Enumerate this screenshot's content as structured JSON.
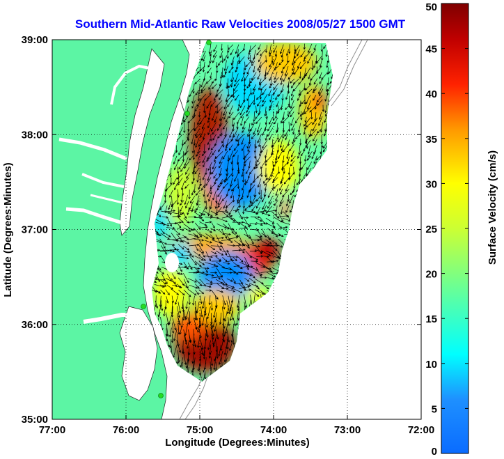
{
  "chart_data": {
    "type": "heatmap",
    "title": "Southern Mid-Atlantic Raw Velocities 2008/05/27 1500 GMT",
    "xlabel": "Longitude (Degrees:Minutes)",
    "ylabel": "Latitude (Degrees:Minutes)",
    "x_tick_labels": [
      "77:00",
      "76:00",
      "75:00",
      "74:00",
      "73:00",
      "72:00"
    ],
    "x_ticks": [
      -77,
      -76,
      -75,
      -74,
      -73,
      -72
    ],
    "y_tick_labels": [
      "39:00",
      "38:00",
      "37:00",
      "36:00",
      "35:00"
    ],
    "y_ticks": [
      39,
      38,
      37,
      36,
      35
    ],
    "xlim": [
      -77,
      -72
    ],
    "ylim": [
      35,
      39
    ],
    "grid": true,
    "colorbar": {
      "label": "Surface Velocity (cm/s)",
      "range": [
        0,
        50
      ],
      "tick_labels": [
        "0",
        "5",
        "10",
        "15",
        "20",
        "25",
        "30",
        "35",
        "40",
        "45",
        "50"
      ],
      "ticks": [
        0,
        5,
        10,
        15,
        20,
        25,
        30,
        35,
        40,
        45,
        50
      ],
      "colormap": "jet"
    },
    "colors": {
      "land": "#5cf5a4",
      "water": "#ffffff",
      "title": "#0000ff",
      "bathymetry": "#909090",
      "stations": "#22dd22"
    }
  }
}
